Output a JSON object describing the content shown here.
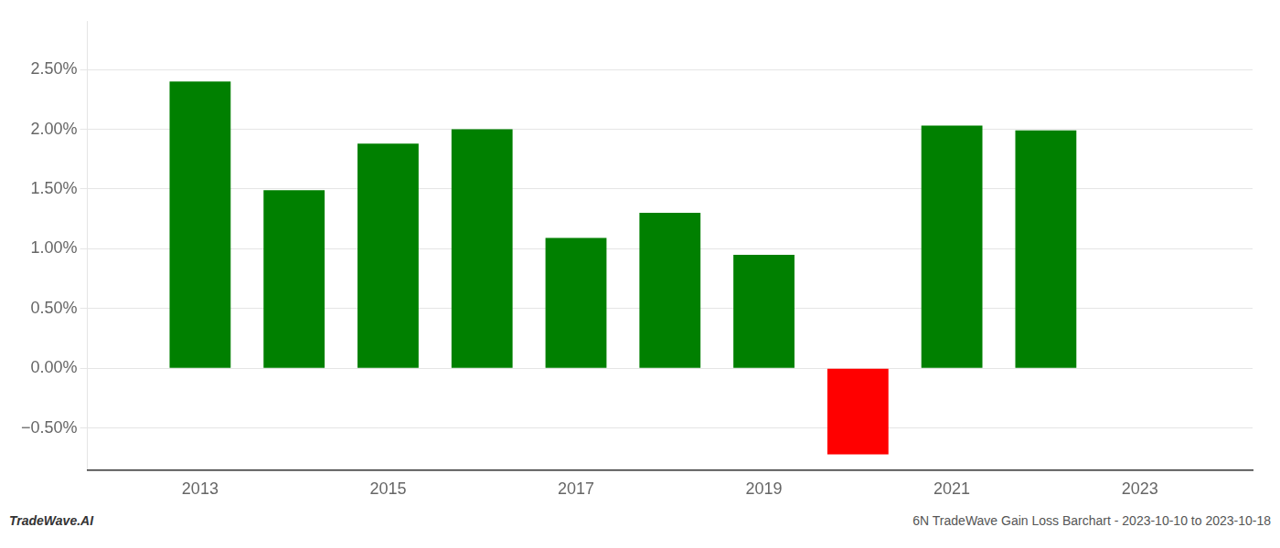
{
  "chart_data": {
    "type": "bar",
    "x": [
      2013,
      2014,
      2015,
      2016,
      2017,
      2018,
      2019,
      2020,
      2021,
      2022
    ],
    "values": [
      0.024,
      0.0149,
      0.0188,
      0.02,
      0.0109,
      0.013,
      0.0095,
      -0.0072,
      0.0203,
      0.0199
    ],
    "colors": [
      "#008000",
      "#008000",
      "#008000",
      "#008000",
      "#008000",
      "#008000",
      "#008000",
      "#ff0000",
      "#008000",
      "#008000"
    ],
    "xlim": [
      2011.8,
      2024.2
    ],
    "xticks": [
      2013,
      2015,
      2017,
      2019,
      2021,
      2023
    ],
    "ylim": [
      -0.0085,
      0.029
    ],
    "yticks": [
      {
        "value": -0.005,
        "label": "−0.50%"
      },
      {
        "value": 0.0,
        "label": "0.00%"
      },
      {
        "value": 0.005,
        "label": "0.50%"
      },
      {
        "value": 0.01,
        "label": "1.00%"
      },
      {
        "value": 0.015,
        "label": "1.50%"
      },
      {
        "value": 0.02,
        "label": "2.00%"
      },
      {
        "value": 0.025,
        "label": "2.50%"
      }
    ],
    "grid": "y",
    "annotations": [
      "TradeWave.AI",
      "6N TradeWave Gain Loss Barchart - 2023-10-10 to 2023-10-18"
    ]
  }
}
